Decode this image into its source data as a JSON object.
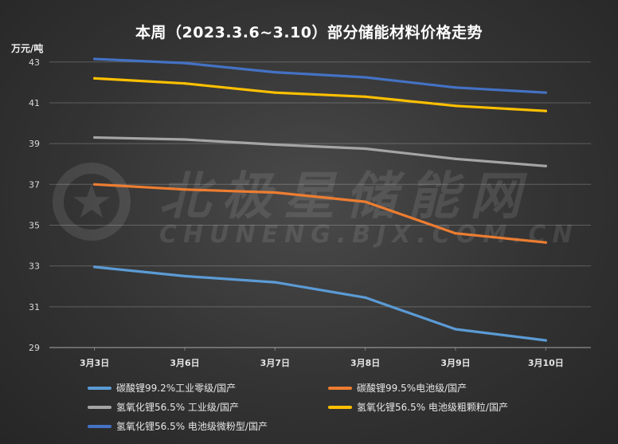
{
  "chart_data": {
    "type": "line",
    "title": "本周（2023.3.6~3.10）部分储能材料价格走势",
    "ylabel": "万元/吨",
    "categories": [
      "3月3日",
      "3月6日",
      "3月7日",
      "3月8日",
      "3月9日",
      "3月10日"
    ],
    "yticks": [
      29,
      31,
      33,
      35,
      37,
      39,
      41,
      43
    ],
    "ylim": [
      29,
      43.5
    ],
    "grid": true,
    "legend_position": "bottom",
    "series": [
      {
        "name": "碳酸锂99.2%工业零级/国产",
        "color": "#5b9bd5",
        "values": [
          32.95,
          32.5,
          32.2,
          31.45,
          29.9,
          29.35
        ]
      },
      {
        "name": "碳酸锂99.5%电池级/国产",
        "color": "#ed7d31",
        "values": [
          37.0,
          36.75,
          36.6,
          36.15,
          34.6,
          34.15
        ]
      },
      {
        "name": "氢氧化锂56.5% 工业级/国产",
        "color": "#a5a5a5",
        "values": [
          39.3,
          39.2,
          38.95,
          38.75,
          38.25,
          37.9
        ]
      },
      {
        "name": "氢氧化锂56.5% 电池级粗颗粒/国产",
        "color": "#ffc000",
        "values": [
          42.2,
          41.95,
          41.5,
          41.3,
          40.85,
          40.6
        ]
      },
      {
        "name": "氢氧化锂56.5% 电池级微粉型/国产",
        "color": "#4472c4",
        "values": [
          43.15,
          42.95,
          42.5,
          42.25,
          41.75,
          41.5
        ]
      }
    ]
  },
  "watermark": {
    "line1": "北极星储能网",
    "line2": "CHUNENG.BJX.COM.CN"
  }
}
